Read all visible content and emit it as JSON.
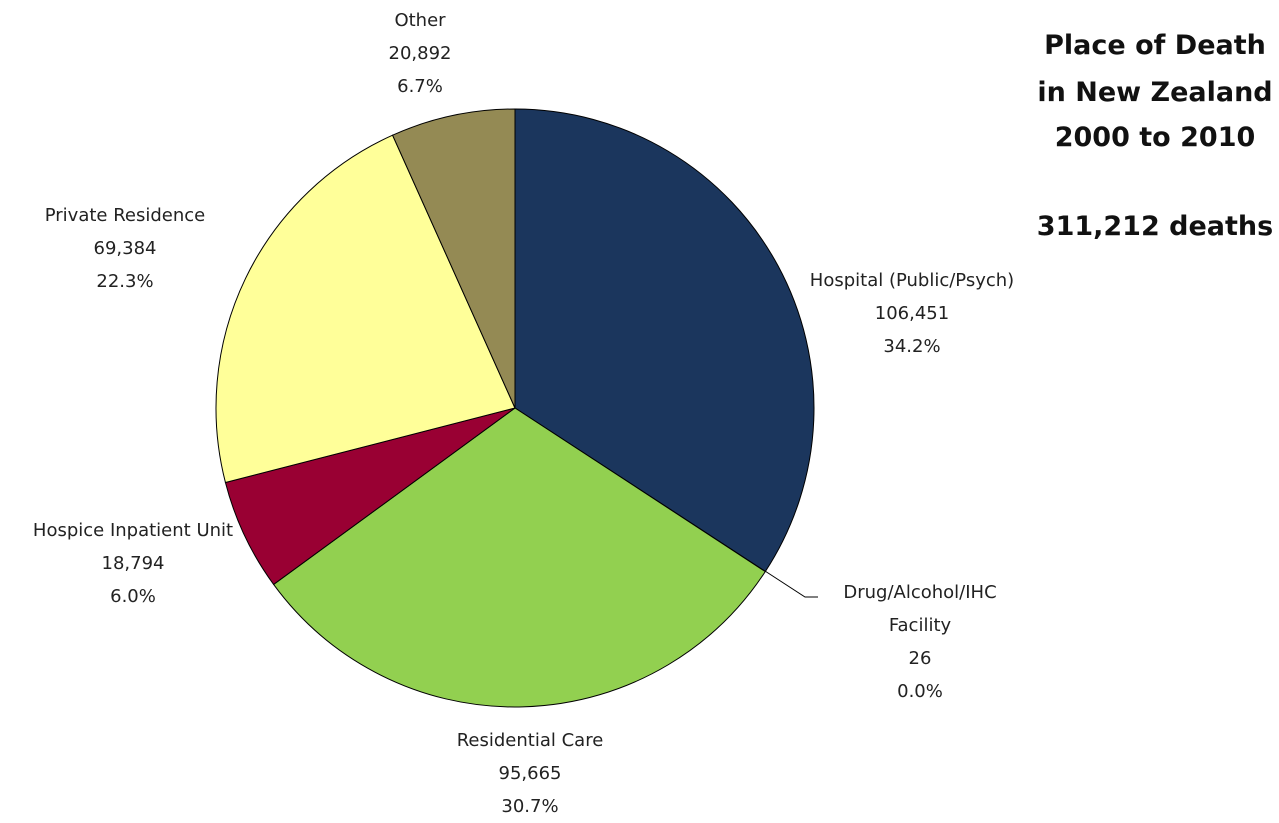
{
  "chart_data": {
    "type": "pie",
    "title": [
      "Place of Death",
      "in New Zealand",
      "2000 to 2010"
    ],
    "subtitle": "311,212 deaths",
    "categories": [
      "Hospital (Public/Psych)",
      "Drug/Alcohol/IHC Facility",
      "Residential Care",
      "Hospice Inpatient Unit",
      "Private Residence",
      "Other"
    ],
    "values": [
      106451,
      26,
      95665,
      18794,
      69384,
      20892
    ],
    "value_labels": [
      "106,451",
      "26",
      "95,665",
      "18,794",
      "69,384",
      "20,892"
    ],
    "percent_labels": [
      "34.2%",
      "0.0%",
      "30.7%",
      "6.0%",
      "22.3%",
      "6.7%"
    ],
    "colors": [
      "#1b365d",
      "#4f81bd",
      "#92d050",
      "#990033",
      "#ffff99",
      "#948a54"
    ]
  }
}
